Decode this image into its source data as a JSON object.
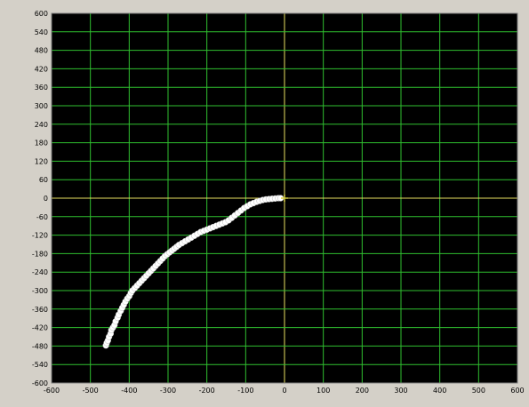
{
  "chart_data": {
    "type": "scatter",
    "xlim": [
      -600,
      600
    ],
    "ylim": [
      -600,
      600
    ],
    "x_ticks": [
      -600,
      -500,
      -400,
      -300,
      -200,
      -100,
      0,
      100,
      200,
      300,
      400,
      500,
      600
    ],
    "y_ticks": [
      600,
      540,
      480,
      420,
      360,
      300,
      240,
      180,
      120,
      60,
      0,
      -60,
      -120,
      -180,
      -240,
      -300,
      -360,
      -420,
      -480,
      -540,
      -600
    ],
    "grid": true,
    "colors": {
      "window_background": "#d4d0c8",
      "plot_background": "#000000",
      "grid": "#2fbf2f",
      "zero_axis": "#e8e060",
      "points": "#ffffff",
      "origin_marker": "#d8d040"
    },
    "series": [
      {
        "values": [
          [
            -460,
            -478
          ],
          [
            -458,
            -470
          ],
          [
            -455,
            -462
          ],
          [
            -452,
            -450
          ],
          [
            -448,
            -440
          ],
          [
            -446,
            -428
          ],
          [
            -442,
            -420
          ],
          [
            -438,
            -412
          ],
          [
            -435,
            -400
          ],
          [
            -430,
            -388
          ],
          [
            -427,
            -378
          ],
          [
            -422,
            -366
          ],
          [
            -418,
            -356
          ],
          [
            -414,
            -346
          ],
          [
            -410,
            -336
          ],
          [
            -405,
            -326
          ],
          [
            -400,
            -318
          ],
          [
            -396,
            -308
          ],
          [
            -392,
            -300
          ],
          [
            -386,
            -292
          ],
          [
            -380,
            -284
          ],
          [
            -374,
            -276
          ],
          [
            -368,
            -268
          ],
          [
            -362,
            -260
          ],
          [
            -356,
            -252
          ],
          [
            -350,
            -244
          ],
          [
            -344,
            -236
          ],
          [
            -338,
            -228
          ],
          [
            -332,
            -220
          ],
          [
            -326,
            -212
          ],
          [
            -320,
            -204
          ],
          [
            -314,
            -196
          ],
          [
            -308,
            -188
          ],
          [
            -302,
            -182
          ],
          [
            -296,
            -176
          ],
          [
            -290,
            -170
          ],
          [
            -284,
            -164
          ],
          [
            -278,
            -158
          ],
          [
            -272,
            -152
          ],
          [
            -264,
            -146
          ],
          [
            -256,
            -140
          ],
          [
            -248,
            -134
          ],
          [
            -240,
            -128
          ],
          [
            -232,
            -122
          ],
          [
            -224,
            -116
          ],
          [
            -216,
            -110
          ],
          [
            -208,
            -106
          ],
          [
            -200,
            -102
          ],
          [
            -192,
            -98
          ],
          [
            -184,
            -94
          ],
          [
            -176,
            -90
          ],
          [
            -168,
            -86
          ],
          [
            -160,
            -82
          ],
          [
            -152,
            -78
          ],
          [
            -144,
            -72
          ],
          [
            -136,
            -64
          ],
          [
            -128,
            -56
          ],
          [
            -120,
            -48
          ],
          [
            -112,
            -40
          ],
          [
            -104,
            -32
          ],
          [
            -96,
            -26
          ],
          [
            -88,
            -20
          ],
          [
            -80,
            -16
          ],
          [
            -72,
            -12
          ],
          [
            -64,
            -9
          ],
          [
            -56,
            -6
          ],
          [
            -48,
            -4
          ],
          [
            -40,
            -3
          ],
          [
            -32,
            -2
          ],
          [
            -24,
            -1
          ],
          [
            -16,
            0
          ],
          [
            -10,
            0
          ]
        ]
      }
    ]
  }
}
